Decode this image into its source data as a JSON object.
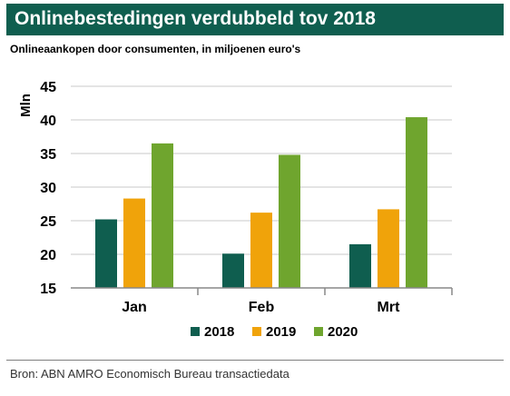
{
  "header": {
    "title": "Onlinebestedingen verdubbeld tov 2018",
    "subtitle": "Onlineaankopen door consumenten, in miljoenen euro's"
  },
  "footer": {
    "source": "Bron: ABN AMRO Economisch Bureau transactiedata"
  },
  "colors": {
    "title_background": "#0f5e4f",
    "series": [
      "#0f5e4f",
      "#f0a30a",
      "#6fa52e"
    ]
  },
  "chart_data": {
    "type": "bar",
    "title": "Onlinebestedingen verdubbeld tov 2018",
    "subtitle": "Onlineaankopen door consumenten, in miljoenen euro's",
    "xlabel": "",
    "ylabel": "Mln",
    "categories": [
      "Jan",
      "Feb",
      "Mrt"
    ],
    "series": [
      {
        "name": "2018",
        "values": [
          25.2,
          20.1,
          21.5
        ]
      },
      {
        "name": "2019",
        "values": [
          28.3,
          26.2,
          26.7
        ]
      },
      {
        "name": "2020",
        "values": [
          36.5,
          34.8,
          40.4
        ]
      }
    ],
    "ylim": [
      15,
      45
    ],
    "yticks": [
      15,
      20,
      25,
      30,
      35,
      40,
      45
    ],
    "grid": true,
    "legend": "bottom"
  }
}
